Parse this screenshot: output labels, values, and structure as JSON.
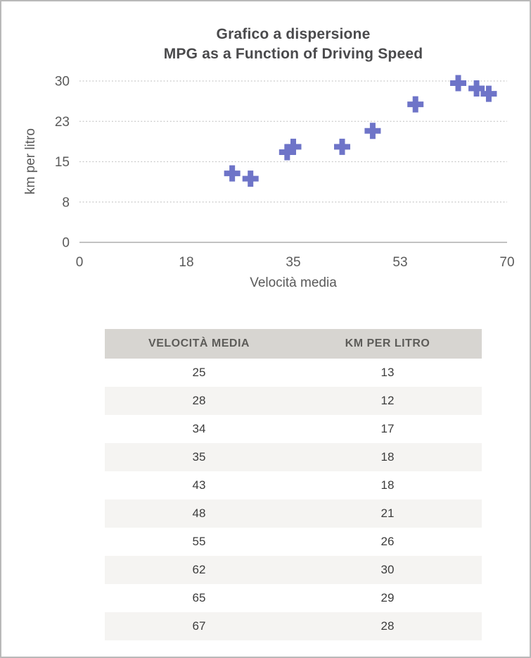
{
  "page": {
    "background": "#ffffff",
    "border_color": "#b9b9b9"
  },
  "chart": {
    "title_line1": "Grafico a dispersione",
    "title_line2": "MPG as a Function of Driving Speed"
  },
  "chart_data": {
    "type": "scatter",
    "title": "Grafico a dispersione",
    "subtitle": "MPG as a Function of Driving Speed",
    "xlabel": "Velocità media",
    "ylabel": "km per litro",
    "points": [
      {
        "x": 25,
        "y": 13
      },
      {
        "x": 28,
        "y": 12
      },
      {
        "x": 34,
        "y": 17
      },
      {
        "x": 35,
        "y": 18
      },
      {
        "x": 43,
        "y": 18
      },
      {
        "x": 48,
        "y": 21
      },
      {
        "x": 55,
        "y": 26
      },
      {
        "x": 62,
        "y": 30
      },
      {
        "x": 65,
        "y": 29
      },
      {
        "x": 67,
        "y": 28
      }
    ],
    "x_ticks": [
      {
        "value": 0,
        "label": "0"
      },
      {
        "value": 17.5,
        "label": "18"
      },
      {
        "value": 35,
        "label": "35"
      },
      {
        "value": 52.5,
        "label": "53"
      },
      {
        "value": 70,
        "label": "70"
      }
    ],
    "y_ticks": [
      {
        "value": 0,
        "label": "0"
      },
      {
        "value": 7.6,
        "label": "8"
      },
      {
        "value": 15.2,
        "label": "15"
      },
      {
        "value": 22.8,
        "label": "23"
      },
      {
        "value": 30.4,
        "label": "30"
      }
    ],
    "xlim": [
      0,
      70
    ],
    "ylim": [
      0,
      30.4
    ],
    "grid": "horizontal-dotted",
    "legend": "none",
    "marker": "plus",
    "marker_color": "#6e74c8",
    "gridline_color": "#c6c6c6",
    "axis_line_color": "#c2c2c2",
    "tick_label_color": "#5a5a5a"
  },
  "table": {
    "headers": [
      "VELOCITÀ MEDIA",
      "KM PER LITRO"
    ],
    "rows": [
      {
        "speed": "25",
        "kml": "13"
      },
      {
        "speed": "28",
        "kml": "12"
      },
      {
        "speed": "34",
        "kml": "17"
      },
      {
        "speed": "35",
        "kml": "18"
      },
      {
        "speed": "43",
        "kml": "18"
      },
      {
        "speed": "48",
        "kml": "21"
      },
      {
        "speed": "55",
        "kml": "26"
      },
      {
        "speed": "62",
        "kml": "30"
      },
      {
        "speed": "65",
        "kml": "29"
      },
      {
        "speed": "67",
        "kml": "28"
      }
    ]
  }
}
